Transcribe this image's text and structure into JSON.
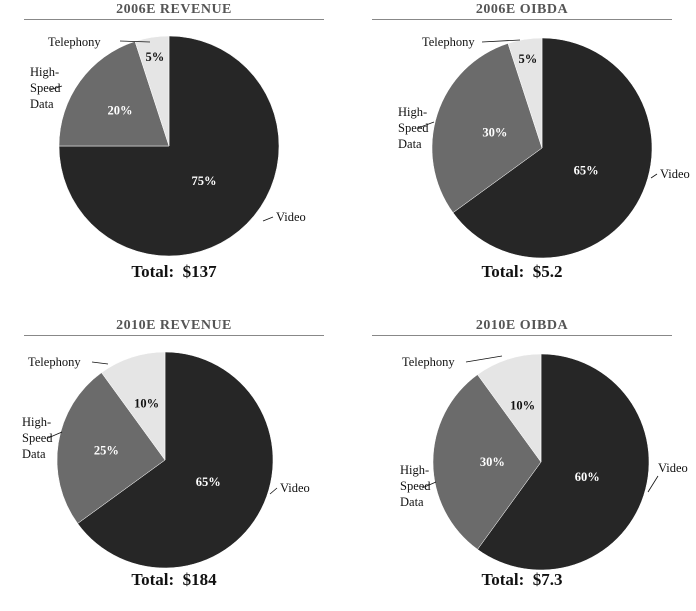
{
  "colors": {
    "Video": "#262626",
    "High-Speed Data": "#6b6b6b",
    "Telephony": "#e5e5e5"
  },
  "chart_data": [
    {
      "type": "pie",
      "title": "2006E REVENUE",
      "total_label": "Total:",
      "total_value": "$137",
      "slices": [
        {
          "label": "Video",
          "label_lines": [
            "Video"
          ],
          "value": 75,
          "text": "75%"
        },
        {
          "label": "High-Speed Data",
          "label_lines": [
            "High-",
            "Speed",
            "Data"
          ],
          "value": 20,
          "text": "20%"
        },
        {
          "label": "Telephony",
          "label_lines": [
            "Telephony"
          ],
          "value": 5,
          "text": "5%"
        }
      ]
    },
    {
      "type": "pie",
      "title": "2006E OIBDA",
      "total_label": "Total:",
      "total_value": "$5.2",
      "slices": [
        {
          "label": "Video",
          "label_lines": [
            "Video"
          ],
          "value": 65,
          "text": "65%"
        },
        {
          "label": "High-Speed Data",
          "label_lines": [
            "High-",
            "Speed",
            "Data"
          ],
          "value": 30,
          "text": "30%"
        },
        {
          "label": "Telephony",
          "label_lines": [
            "Telephony"
          ],
          "value": 5,
          "text": "5%"
        }
      ]
    },
    {
      "type": "pie",
      "title": "2010E REVENUE",
      "total_label": "Total:",
      "total_value": "$184",
      "slices": [
        {
          "label": "Video",
          "label_lines": [
            "Video"
          ],
          "value": 65,
          "text": "65%"
        },
        {
          "label": "High-Speed Data",
          "label_lines": [
            "High-",
            "Speed",
            "Data"
          ],
          "value": 25,
          "text": "25%"
        },
        {
          "label": "Telephony",
          "label_lines": [
            "Telephony"
          ],
          "value": 10,
          "text": "10%"
        }
      ]
    },
    {
      "type": "pie",
      "title": "2010E OIBDA",
      "total_label": "Total:",
      "total_value": "$7.3",
      "slices": [
        {
          "label": "Video",
          "label_lines": [
            "Video"
          ],
          "value": 60,
          "text": "60%"
        },
        {
          "label": "High-Speed Data",
          "label_lines": [
            "High-",
            "Speed",
            "Data"
          ],
          "value": 30,
          "text": "30%"
        },
        {
          "label": "Telephony",
          "label_lines": [
            "Telephony"
          ],
          "value": 10,
          "text": "10%"
        }
      ]
    }
  ]
}
